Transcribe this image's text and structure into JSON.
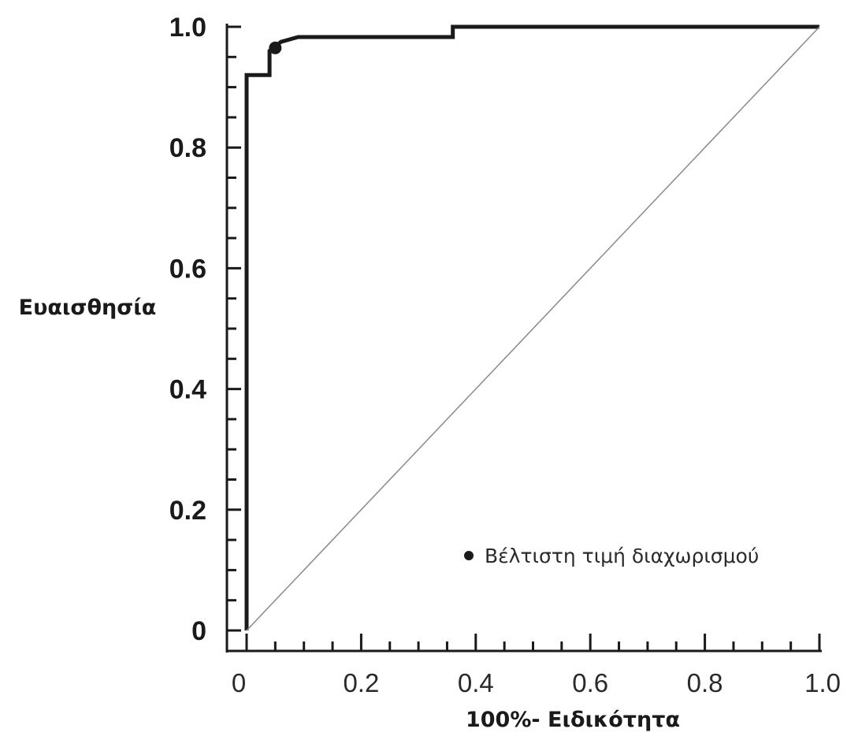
{
  "chart_data": {
    "type": "line",
    "title": "",
    "xlabel": "100%- Ειδικότητα",
    "ylabel": "Ευαισθησία",
    "xlim": [
      0,
      1
    ],
    "ylim": [
      0,
      1
    ],
    "x_ticks": [
      {
        "value": 0,
        "label": "0"
      },
      {
        "value": 0.2,
        "label": "0.2"
      },
      {
        "value": 0.4,
        "label": "0.4"
      },
      {
        "value": 0.6,
        "label": "0.6"
      },
      {
        "value": 0.8,
        "label": "0.8"
      },
      {
        "value": 1.0,
        "label": "1.0"
      }
    ],
    "y_ticks": [
      {
        "value": 0,
        "label": "0"
      },
      {
        "value": 0.2,
        "label": "0.2"
      },
      {
        "value": 0.4,
        "label": "0.4"
      },
      {
        "value": 0.6,
        "label": "0.6"
      },
      {
        "value": 0.8,
        "label": "0.8"
      },
      {
        "value": 1.0,
        "label": "1.0"
      }
    ],
    "minor_tick_step": 0.05,
    "grid": false,
    "series": [
      {
        "role": "roc-curve",
        "style": "thick-step",
        "points": [
          [
            0.0,
            0.0
          ],
          [
            0.0,
            0.92
          ],
          [
            0.04,
            0.92
          ],
          [
            0.04,
            0.96
          ],
          [
            0.06,
            0.975
          ],
          [
            0.09,
            0.983
          ],
          [
            0.36,
            0.983
          ],
          [
            0.36,
            1.0
          ],
          [
            1.0,
            1.0
          ]
        ]
      },
      {
        "role": "reference-diagonal",
        "style": "thin",
        "points": [
          [
            0.0,
            0.0
          ],
          [
            1.0,
            1.0
          ]
        ]
      }
    ],
    "markers": [
      {
        "role": "optimal-cutoff",
        "x": 0.05,
        "y": 0.965
      }
    ],
    "legend": {
      "placement": "bottom-right",
      "entries": [
        {
          "symbol": "dot",
          "label": "Βέλτιστη τιμή διαχωρισμού"
        }
      ]
    },
    "colors": {
      "curve": "#1a1a1a",
      "diagonal": "#8a8a8a",
      "axis": "#1a1a1a",
      "text": "#1a1a1a"
    }
  }
}
